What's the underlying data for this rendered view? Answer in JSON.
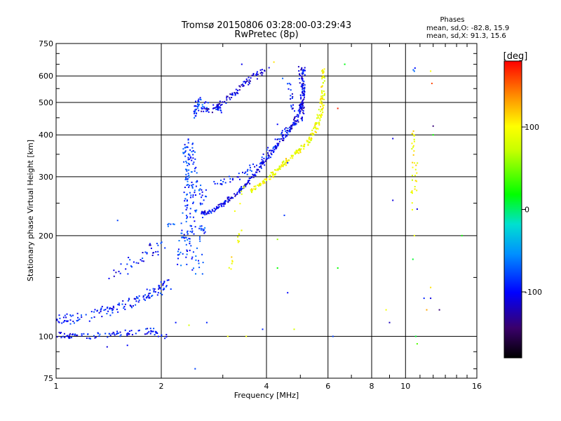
{
  "chart_data": {
    "type": "scatter",
    "title": "Tromsø 20150806 03:28:00-03:29:43",
    "subtitle": "RwPretec (8p)",
    "xlabel": "Frequency [MHz]",
    "ylabel": "Stationary phase Virtual Height [km]",
    "x_scale": "log",
    "y_scale": "log",
    "xlim": [
      1,
      16
    ],
    "ylim": [
      75,
      750
    ],
    "x_ticks": [
      1,
      2,
      4,
      6,
      8,
      10,
      16
    ],
    "x_tick_labels": [
      "1",
      "2",
      "4",
      "6",
      "8",
      "10",
      "16"
    ],
    "y_ticks": [
      75,
      100,
      200,
      300,
      400,
      500,
      600,
      750
    ],
    "y_tick_labels": [
      "75",
      "100",
      "200",
      "300",
      "400",
      "500",
      "600",
      "750"
    ],
    "grid": true,
    "phase_header": "Phases",
    "phase_stat_o": "mean, sd,O: -82.8, 15.9",
    "phase_stat_x": "mean, sd,X:  91.3, 15.6",
    "colorbar": {
      "label": "[deg]",
      "range": [
        -180,
        180
      ],
      "ticks": [
        100,
        0,
        -100
      ],
      "tick_labels": [
        "100",
        "0",
        "-100"
      ]
    },
    "traces": [
      {
        "points": [
          [
            1.0,
            101
          ],
          [
            1.08,
            100
          ],
          [
            1.2,
            100
          ],
          [
            1.35,
            101
          ],
          [
            1.5,
            102
          ],
          [
            1.7,
            103
          ],
          [
            1.9,
            104
          ],
          [
            2.05,
            100
          ]
        ],
        "phase_mean": -95,
        "spread_h": 0.02,
        "density": 14
      },
      {
        "points": [
          [
            1.0,
            114
          ],
          [
            1.1,
            112
          ],
          [
            1.25,
            115
          ],
          [
            1.4,
            120
          ],
          [
            1.55,
            124
          ],
          [
            1.7,
            128
          ],
          [
            1.85,
            134
          ],
          [
            2.0,
            140
          ],
          [
            2.1,
            145
          ]
        ],
        "phase_mean": -95,
        "spread_h": 0.035,
        "density": 18
      },
      {
        "points": [
          [
            1.45,
            150
          ],
          [
            1.6,
            160
          ],
          [
            1.75,
            172
          ],
          [
            1.9,
            182
          ],
          [
            2.0,
            190
          ]
        ],
        "phase_mean": -100,
        "spread_h": 0.04,
        "density": 10
      },
      {
        "points": [
          [
            2.05,
            215
          ],
          [
            2.2,
            216
          ]
        ],
        "phase_mean": -85,
        "spread_h": 0.01,
        "density": 6
      },
      {
        "points": [
          [
            2.3,
            165
          ],
          [
            2.35,
            200
          ],
          [
            2.4,
            250
          ],
          [
            2.45,
            300
          ],
          [
            2.4,
            340
          ],
          [
            2.4,
            380
          ]
        ],
        "phase_mean": -85,
        "spread_h": 0.04,
        "density": 30
      },
      {
        "points": [
          [
            2.5,
            150
          ],
          [
            2.55,
            200
          ],
          [
            2.6,
            250
          ],
          [
            2.55,
            290
          ]
        ],
        "phase_mean": -85,
        "spread_h": 0.05,
        "density": 20
      },
      {
        "points": [
          [
            2.6,
            233
          ],
          [
            2.85,
            238
          ],
          [
            3.1,
            255
          ],
          [
            3.4,
            275
          ],
          [
            3.7,
            305
          ],
          [
            4.0,
            340
          ],
          [
            4.4,
            380
          ],
          [
            4.8,
            430
          ],
          [
            5.0,
            480
          ],
          [
            5.1,
            540
          ],
          [
            5.1,
            640
          ]
        ],
        "phase_mean": -105,
        "spread_h": 0.012,
        "density": 30
      },
      {
        "points": [
          [
            2.85,
            285
          ],
          [
            3.2,
            295
          ],
          [
            3.6,
            315
          ],
          [
            4.0,
            350
          ],
          [
            4.4,
            390
          ],
          [
            4.8,
            445
          ]
        ],
        "phase_mean": -95,
        "spread_h": 0.02,
        "density": 14
      },
      {
        "points": [
          [
            2.5,
            480
          ],
          [
            2.8,
            470
          ],
          [
            3.0,
            500
          ],
          [
            3.3,
            540
          ],
          [
            3.6,
            590
          ],
          [
            4.0,
            630
          ]
        ],
        "phase_mean": -110,
        "spread_h": 0.02,
        "density": 22
      },
      {
        "points": [
          [
            2.6,
            500
          ],
          [
            2.9,
            480
          ],
          [
            3.0,
            470
          ]
        ],
        "phase_mean": -80,
        "spread_h": 0.02,
        "density": 8
      },
      {
        "points": [
          [
            2.5,
            440
          ],
          [
            2.5,
            470
          ],
          [
            2.55,
            500
          ],
          [
            2.6,
            520
          ]
        ],
        "phase_mean": -85,
        "spread_h": 0.015,
        "density": 8
      },
      {
        "points": [
          [
            5.0,
            640
          ],
          [
            5.05,
            560
          ],
          [
            5.1,
            480
          ],
          [
            5.0,
            440
          ]
        ],
        "phase_mean": -110,
        "spread_h": 0.015,
        "density": 14
      },
      {
        "points": [
          [
            4.6,
            580
          ],
          [
            4.7,
            520
          ],
          [
            4.8,
            470
          ]
        ],
        "phase_mean": -100,
        "spread_h": 0.015,
        "density": 8
      },
      {
        "points": [
          [
            3.6,
            270
          ],
          [
            4.0,
            295
          ],
          [
            4.4,
            320
          ],
          [
            4.8,
            350
          ],
          [
            5.2,
            375
          ],
          [
            5.5,
            410
          ],
          [
            5.7,
            460
          ],
          [
            5.8,
            520
          ],
          [
            5.8,
            640
          ]
        ],
        "phase_mean": 95,
        "spread_h": 0.015,
        "density": 30
      },
      {
        "points": [
          [
            3.3,
            190
          ],
          [
            3.35,
            205
          ]
        ],
        "phase_mean": 95,
        "spread_h": 0.015,
        "density": 8
      },
      {
        "points": [
          [
            3.15,
            160
          ],
          [
            3.2,
            175
          ]
        ],
        "phase_mean": 95,
        "spread_h": 0.015,
        "density": 6
      },
      {
        "points": [
          [
            3.3,
            240
          ],
          [
            3.4,
            285
          ]
        ],
        "phase_mean": 95,
        "spread_h": 0.02,
        "density": 6
      },
      {
        "points": [
          [
            10.5,
            240
          ],
          [
            10.6,
            300
          ],
          [
            10.6,
            360
          ],
          [
            10.5,
            420
          ]
        ],
        "phase_mean": 95,
        "spread_h": 0.02,
        "density": 12
      },
      {
        "points": [
          [
            10.6,
            640
          ],
          [
            10.6,
            610
          ]
        ],
        "phase_mean": -90,
        "spread_h": 0.01,
        "density": 3
      }
    ],
    "sparse_points": [
      [
        1.5,
        222,
        -80
      ],
      [
        2.6,
        210,
        -85
      ],
      [
        3.4,
        650,
        -105
      ],
      [
        4.2,
        660,
        110
      ],
      [
        4.45,
        590,
        -70
      ],
      [
        4.3,
        430,
        -100
      ],
      [
        4.6,
        330,
        -90
      ],
      [
        4.5,
        230,
        -85
      ],
      [
        6.7,
        650,
        15
      ],
      [
        6.4,
        480,
        170
      ],
      [
        6.4,
        160,
        20
      ],
      [
        6.2,
        100,
        -80
      ],
      [
        9.0,
        110,
        -120
      ],
      [
        9.2,
        390,
        -110
      ],
      [
        9.2,
        255,
        -110
      ],
      [
        8.8,
        120,
        95
      ],
      [
        10.5,
        170,
        10
      ],
      [
        10.6,
        200,
        95
      ],
      [
        10.8,
        240,
        -110
      ],
      [
        11.8,
        130,
        -110
      ],
      [
        11.5,
        120,
        130
      ],
      [
        12.0,
        400,
        20
      ],
      [
        12.0,
        425,
        -140
      ],
      [
        11.9,
        570,
        160
      ],
      [
        11.8,
        620,
        100
      ],
      [
        11.8,
        140,
        110
      ],
      [
        11.3,
        130,
        -90
      ],
      [
        12.5,
        120,
        -140
      ],
      [
        14.5,
        200,
        20
      ],
      [
        10.8,
        95,
        40
      ],
      [
        10.7,
        100,
        10
      ],
      [
        4.3,
        160,
        20
      ],
      [
        4.3,
        195,
        60
      ],
      [
        4.6,
        135,
        -100
      ],
      [
        4.8,
        105,
        80
      ],
      [
        3.9,
        105,
        -90
      ],
      [
        3.5,
        100,
        95
      ],
      [
        3.1,
        100,
        95
      ],
      [
        2.2,
        110,
        -95
      ],
      [
        2.4,
        108,
        80
      ],
      [
        2.7,
        110,
        -90
      ],
      [
        2.5,
        80,
        -80
      ],
      [
        1.6,
        94,
        -100
      ],
      [
        1.4,
        93,
        -110
      ]
    ]
  }
}
